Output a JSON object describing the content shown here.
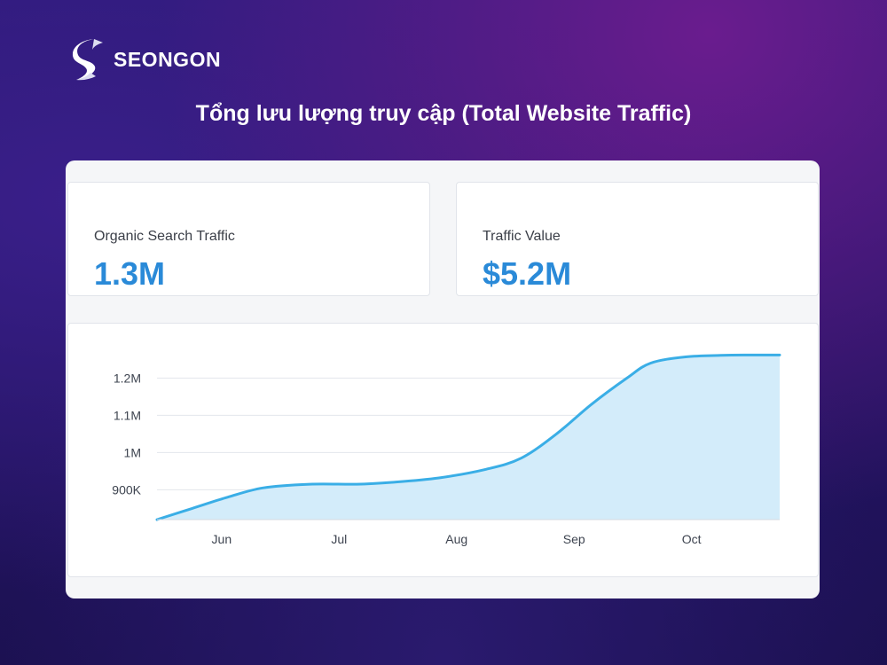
{
  "brand": {
    "name": "SEONGON"
  },
  "title": "Tổng lưu lượng truy cập (Total Website Traffic)",
  "kpis": [
    {
      "label": "Organic Search Traffic",
      "value": "1.3M"
    },
    {
      "label": "Traffic Value",
      "value": "$5.2M"
    }
  ],
  "colors": {
    "accent": "#2a8ad8",
    "line": "#3aaee6",
    "area": "#d3ecfa",
    "grid": "#e3e6ec"
  },
  "chart_data": {
    "type": "area",
    "title": "",
    "xlabel": "",
    "ylabel": "",
    "x_tick_labels": [
      "Jun",
      "Jul",
      "Aug",
      "Sep",
      "Oct"
    ],
    "y_tick_labels": [
      "1.2M",
      "1.1M",
      "1M",
      "900K"
    ],
    "y_ticks": [
      1200000,
      1100000,
      1000000,
      900000
    ],
    "x_ticks": [
      5.55,
      6.55,
      7.55,
      8.55,
      9.55
    ],
    "xlim": [
      5.0,
      10.3
    ],
    "ylim": [
      820000,
      1270000
    ],
    "grid": true,
    "series": [
      {
        "name": "Organic Search Traffic",
        "x": [
          5.0,
          5.3,
          5.6,
          5.9,
          6.3,
          6.7,
          7.0,
          7.4,
          7.8,
          8.1,
          8.4,
          8.7,
          9.0,
          9.2,
          9.5,
          9.8,
          10.0,
          10.3
        ],
        "y": [
          820000,
          850000,
          880000,
          905000,
          915000,
          915000,
          920000,
          932000,
          955000,
          985000,
          1050000,
          1130000,
          1200000,
          1240000,
          1257000,
          1261000,
          1262000,
          1262000
        ]
      }
    ]
  }
}
